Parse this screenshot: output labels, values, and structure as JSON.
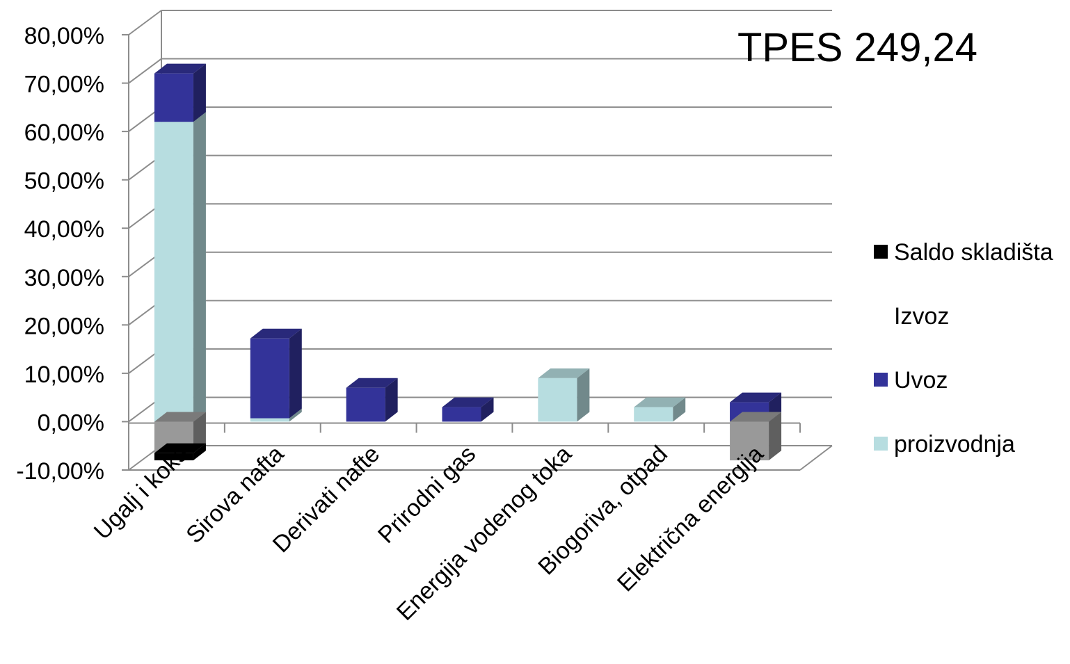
{
  "chart_data": {
    "type": "bar",
    "stacked": true,
    "three_d": true,
    "annotation": "TPES 249,24",
    "categories": [
      "Ugalj i koks",
      "Sirova nafta",
      "Derivati nafte",
      "Prirodni  gas",
      "Energija vodenog toka",
      "Biogoriva, otpad",
      "Električna energija"
    ],
    "series": [
      {
        "name": "proizvodnja",
        "color": "#B7DDE0",
        "values": [
          62.0,
          0.7,
          0.0,
          0.0,
          9.0,
          3.0,
          0.0
        ]
      },
      {
        "name": "Uvoz",
        "color": "#333399",
        "values": [
          10.0,
          16.5,
          7.0,
          3.0,
          0.0,
          0.0,
          4.0
        ]
      },
      {
        "name": "Izvoz",
        "color": "#999999",
        "values": [
          -6.5,
          0.0,
          0.0,
          0.0,
          0.0,
          0.0,
          -8.0
        ]
      },
      {
        "name": "Saldo skladišta",
        "color": "#000000",
        "values": [
          -1.5,
          0.0,
          0.0,
          0.0,
          0.0,
          0.0,
          0.0
        ]
      }
    ],
    "y_tick_labels": [
      "-10,00%",
      "0,00%",
      "10,00%",
      "20,00%",
      "30,00%",
      "40,00%",
      "50,00%",
      "60,00%",
      "70,00%",
      "80,00%"
    ],
    "ylim": [
      -10,
      80
    ],
    "grid": true,
    "legend_position": "right"
  }
}
